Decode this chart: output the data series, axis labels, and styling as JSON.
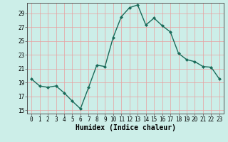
{
  "x": [
    0,
    1,
    2,
    3,
    4,
    5,
    6,
    7,
    8,
    9,
    10,
    11,
    12,
    13,
    14,
    15,
    16,
    17,
    18,
    19,
    20,
    21,
    22,
    23
  ],
  "y": [
    19.5,
    18.5,
    18.3,
    18.5,
    17.5,
    16.3,
    15.2,
    18.3,
    21.5,
    21.3,
    25.5,
    28.5,
    29.8,
    30.2,
    27.3,
    28.3,
    27.2,
    26.3,
    23.2,
    22.3,
    22.0,
    21.3,
    21.2,
    19.5
  ],
  "line_color": "#1a6b5a",
  "marker": "D",
  "marker_size": 2.0,
  "background_color": "#cceee8",
  "grid_color": "#e8a0a0",
  "xlabel": "Humidex (Indice chaleur)",
  "ylabel": "",
  "title": "",
  "xlim": [
    -0.5,
    23.5
  ],
  "ylim": [
    14.5,
    30.5
  ],
  "yticks": [
    15,
    17,
    19,
    21,
    23,
    25,
    27,
    29
  ],
  "xticks": [
    0,
    1,
    2,
    3,
    4,
    5,
    6,
    7,
    8,
    9,
    10,
    11,
    12,
    13,
    14,
    15,
    16,
    17,
    18,
    19,
    20,
    21,
    22,
    23
  ],
  "tick_fontsize": 5.5,
  "xlabel_fontsize": 7.0,
  "linewidth": 1.0
}
